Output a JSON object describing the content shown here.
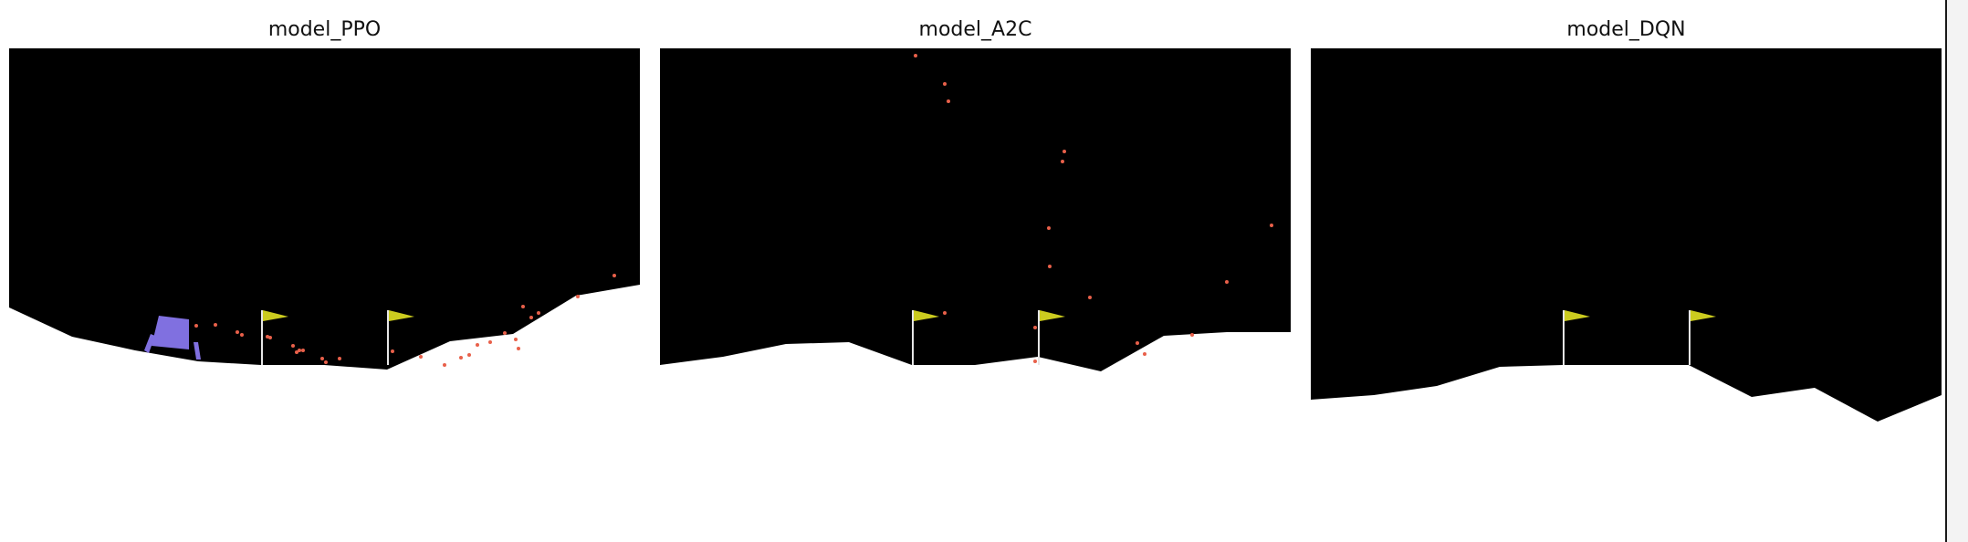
{
  "figure": {
    "panels": [
      {
        "title": "model_PPO"
      },
      {
        "title": "model_A2C"
      },
      {
        "title": "model_DQN"
      }
    ]
  },
  "colors": {
    "sky": "#000000",
    "ground": "#ffffff",
    "flag": "#cccc1f",
    "pole": "#e6e6e6",
    "lander": "#8070e0",
    "particles": "#e8604a"
  }
}
